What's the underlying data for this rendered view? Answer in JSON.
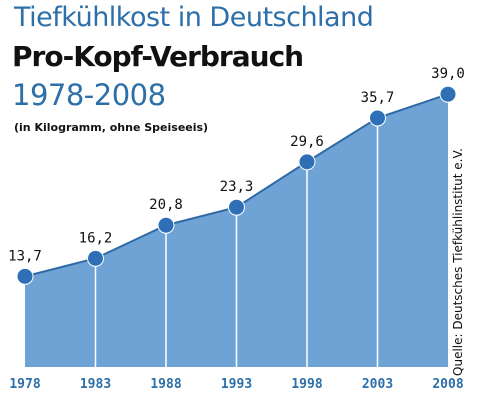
{
  "header": {
    "title_line1": "Tiefkühlkost in Deutschland",
    "title_line2": "Pro-Kopf-Verbrauch",
    "title_line3": "1978-2008",
    "subtitle": "(in Kilogramm, ohne Speiseeis)"
  },
  "source": "Quelle: Deutsches Tiefkühlinstitut e.V.",
  "colors": {
    "area_fill": "#6fa3d6",
    "line": "#2f6aa6",
    "marker": "#2f6fb5",
    "title_blue": "#2d6fa8",
    "text_dark": "#111111"
  },
  "chart_data": {
    "type": "area",
    "title": "Tiefkühlkost in Deutschland",
    "subtitle": "Pro-Kopf-Verbrauch 1978-2008",
    "ylabel": "(in Kilogramm, ohne Speiseeis)",
    "categories": [
      "1978",
      "1983",
      "1988",
      "1993",
      "1998",
      "2003",
      "2008"
    ],
    "values": [
      13.7,
      16.2,
      20.8,
      23.3,
      29.6,
      35.7,
      39.0
    ],
    "value_labels": [
      "13,7",
      "16,2",
      "20,8",
      "23,3",
      "29,6",
      "35,7",
      "39,0"
    ],
    "ylim": [
      0,
      45
    ],
    "grid": false,
    "legend": "none"
  }
}
